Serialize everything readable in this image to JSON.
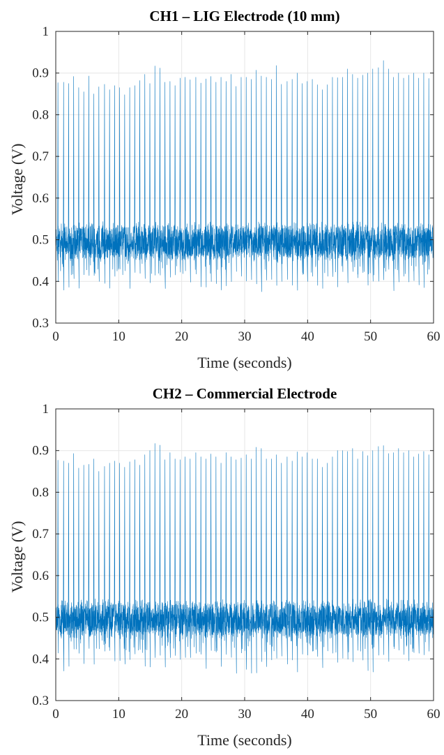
{
  "chart_data": [
    {
      "type": "line",
      "title": "CH1 – LIG Electrode (10 mm)",
      "xlabel": "Time (seconds)",
      "ylabel": "Voltage (V)",
      "xlim": [
        0,
        60
      ],
      "ylim": [
        0.3,
        1
      ],
      "xticks": [
        "0",
        "10",
        "20",
        "30",
        "40",
        "50",
        "60"
      ],
      "yticks": [
        "0.3",
        "0.4",
        "0.5",
        "0.6",
        "0.7",
        "0.8",
        "0.9",
        "1"
      ],
      "grid": true,
      "line_color": "#0072BD",
      "baseline": 0.495,
      "noise_band": [
        0.445,
        0.545
      ],
      "trough_range": [
        0.375,
        0.43
      ],
      "peak_times": [
        0.3,
        1.2,
        2.0,
        2.8,
        3.6,
        4.4,
        5.2,
        6.0,
        6.8,
        7.7,
        8.5,
        9.3,
        10.1,
        10.9,
        11.7,
        12.5,
        13.3,
        14.1,
        14.9,
        15.7,
        16.5,
        17.3,
        18.1,
        18.9,
        19.7,
        20.5,
        21.3,
        22.2,
        23.0,
        23.8,
        24.6,
        25.4,
        26.2,
        27.0,
        27.8,
        28.6,
        29.4,
        30.2,
        31.0,
        31.8,
        32.6,
        33.4,
        34.2,
        35.0,
        35.8,
        36.7,
        37.5,
        38.3,
        39.1,
        39.9,
        40.7,
        41.5,
        42.3,
        43.1,
        43.9,
        44.7,
        45.5,
        46.3,
        47.1,
        47.9,
        48.7,
        49.5,
        50.3,
        51.2,
        52.0,
        52.8,
        53.6,
        54.4,
        55.2,
        56.0,
        56.8,
        57.6,
        58.4,
        59.2
      ],
      "peak_values": [
        0.877,
        0.878,
        0.875,
        0.892,
        0.865,
        0.855,
        0.893,
        0.85,
        0.867,
        0.873,
        0.86,
        0.87,
        0.865,
        0.848,
        0.865,
        0.87,
        0.882,
        0.897,
        0.875,
        0.917,
        0.912,
        0.878,
        0.88,
        0.87,
        0.888,
        0.89,
        0.884,
        0.89,
        0.876,
        0.886,
        0.892,
        0.878,
        0.89,
        0.88,
        0.897,
        0.868,
        0.89,
        0.89,
        0.885,
        0.907,
        0.893,
        0.89,
        0.885,
        0.918,
        0.873,
        0.88,
        0.885,
        0.9,
        0.875,
        0.88,
        0.885,
        0.872,
        0.86,
        0.872,
        0.89,
        0.889,
        0.89,
        0.91,
        0.897,
        0.888,
        0.895,
        0.9,
        0.91,
        0.913,
        0.93,
        0.91,
        0.89,
        0.9,
        0.888,
        0.895,
        0.9,
        0.888,
        0.9,
        0.887
      ]
    },
    {
      "type": "line",
      "title": "CH2 – Commercial Electrode",
      "xlabel": "Time (seconds)",
      "ylabel": "Voltage (V)",
      "xlim": [
        0,
        60
      ],
      "ylim": [
        0.3,
        1
      ],
      "xticks": [
        "0",
        "10",
        "20",
        "30",
        "40",
        "50",
        "60"
      ],
      "yticks": [
        "0.3",
        "0.4",
        "0.5",
        "0.6",
        "0.7",
        "0.8",
        "0.9",
        "1"
      ],
      "grid": true,
      "line_color": "#0072BD",
      "baseline": 0.495,
      "noise_band": [
        0.445,
        0.545
      ],
      "trough_range": [
        0.365,
        0.43
      ],
      "peak_times": [
        0.3,
        1.2,
        2.0,
        2.8,
        3.6,
        4.4,
        5.2,
        6.0,
        6.8,
        7.7,
        8.5,
        9.3,
        10.1,
        10.9,
        11.7,
        12.5,
        13.3,
        14.1,
        14.9,
        15.7,
        16.5,
        17.3,
        18.1,
        18.9,
        19.7,
        20.5,
        21.3,
        22.2,
        23.0,
        23.8,
        24.6,
        25.4,
        26.2,
        27.0,
        27.8,
        28.6,
        29.4,
        30.2,
        31.0,
        31.8,
        32.6,
        33.4,
        34.2,
        35.0,
        35.8,
        36.7,
        37.5,
        38.3,
        39.1,
        39.9,
        40.7,
        41.5,
        42.3,
        43.1,
        43.9,
        44.7,
        45.5,
        46.3,
        47.1,
        47.9,
        48.7,
        49.5,
        50.3,
        51.2,
        52.0,
        52.8,
        53.6,
        54.4,
        55.2,
        56.0,
        56.8,
        57.6,
        58.4,
        59.2
      ],
      "peak_values": [
        0.877,
        0.875,
        0.87,
        0.893,
        0.858,
        0.865,
        0.867,
        0.88,
        0.85,
        0.862,
        0.87,
        0.875,
        0.87,
        0.86,
        0.873,
        0.878,
        0.865,
        0.89,
        0.9,
        0.917,
        0.913,
        0.878,
        0.895,
        0.88,
        0.878,
        0.885,
        0.88,
        0.895,
        0.885,
        0.88,
        0.892,
        0.885,
        0.87,
        0.895,
        0.885,
        0.878,
        0.882,
        0.89,
        0.88,
        0.908,
        0.905,
        0.88,
        0.88,
        0.89,
        0.87,
        0.885,
        0.875,
        0.897,
        0.885,
        0.895,
        0.88,
        0.88,
        0.86,
        0.87,
        0.885,
        0.9,
        0.9,
        0.898,
        0.905,
        0.88,
        0.898,
        0.888,
        0.9,
        0.91,
        0.912,
        0.893,
        0.895,
        0.905,
        0.895,
        0.9,
        0.885,
        0.892,
        0.898,
        0.89
      ]
    }
  ]
}
